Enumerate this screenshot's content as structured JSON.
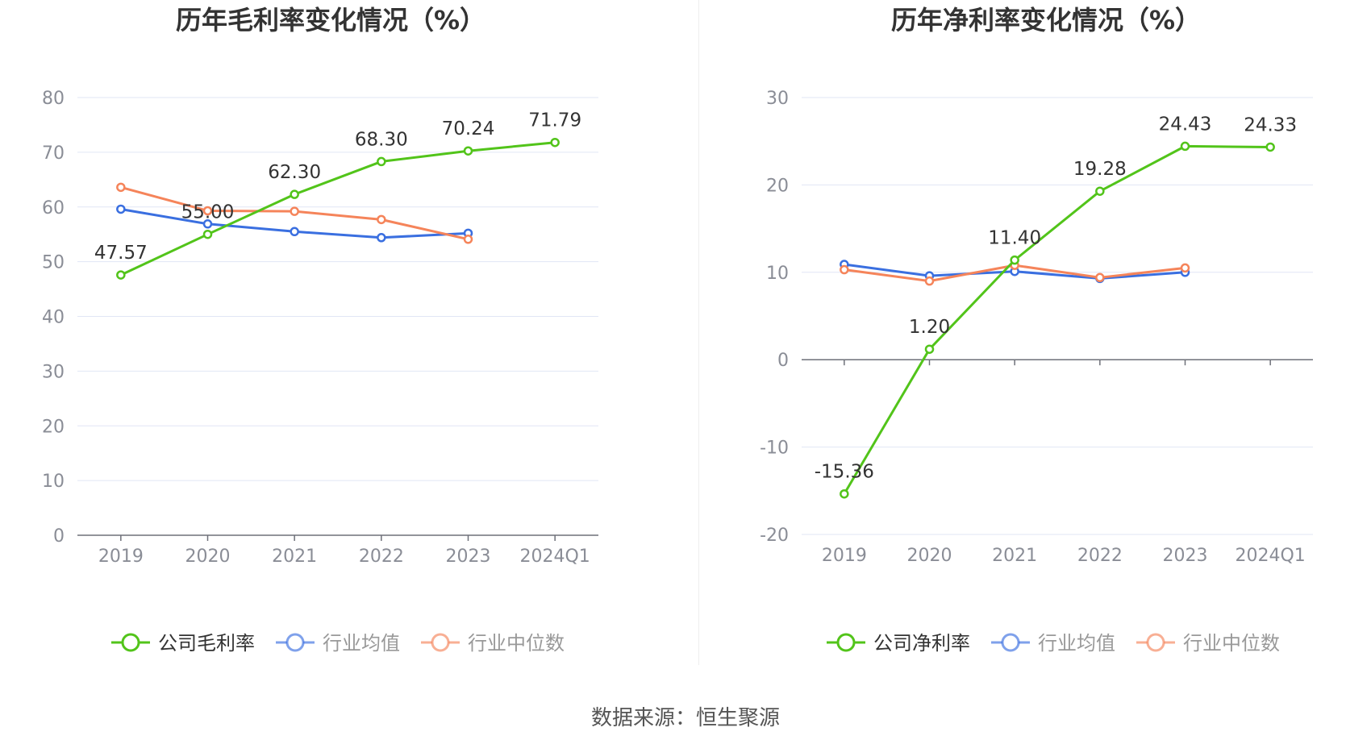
{
  "source_text": "数据来源：恒生聚源",
  "colors": {
    "company": "#52c41a",
    "avg": "#3a6fe0",
    "median": "#f5845a",
    "grid": "#e1e6f5",
    "axis": "#6e7079",
    "tick_text": "#8a8d96",
    "title": "#333333",
    "label": "#333333"
  },
  "chart_data": [
    {
      "type": "line",
      "title": "历年毛利率变化情况（%）",
      "categories": [
        "2019",
        "2020",
        "2021",
        "2022",
        "2023",
        "2024Q1"
      ],
      "ylim": [
        0,
        80
      ],
      "yticks": [
        0,
        10,
        20,
        30,
        40,
        50,
        60,
        70,
        80
      ],
      "grid": true,
      "legend_position": "bottom",
      "series": [
        {
          "name": "公司毛利率",
          "color": "#52c41a",
          "values": [
            47.57,
            55.0,
            62.3,
            68.3,
            70.24,
            71.79
          ],
          "labels": [
            "47.57",
            "55.00",
            "62.30",
            "68.30",
            "70.24",
            "71.79"
          ]
        },
        {
          "name": "行业均值",
          "color": "#3a6fe0",
          "values": [
            59.6,
            56.9,
            55.5,
            54.4,
            55.2,
            null
          ]
        },
        {
          "name": "行业中位数",
          "color": "#f5845a",
          "values": [
            63.6,
            59.3,
            59.2,
            57.7,
            54.1,
            null
          ]
        }
      ]
    },
    {
      "type": "line",
      "title": "历年净利率变化情况（%）",
      "categories": [
        "2019",
        "2020",
        "2021",
        "2022",
        "2023",
        "2024Q1"
      ],
      "ylim": [
        -20,
        30
      ],
      "yticks": [
        -20,
        -10,
        0,
        10,
        20,
        30
      ],
      "grid": true,
      "legend_position": "bottom",
      "series": [
        {
          "name": "公司净利率",
          "color": "#52c41a",
          "values": [
            -15.36,
            1.2,
            11.4,
            19.28,
            24.43,
            24.33
          ],
          "labels": [
            "-15.36",
            "1.20",
            "11.40",
            "19.28",
            "24.43",
            "24.33"
          ]
        },
        {
          "name": "行业均值",
          "color": "#3a6fe0",
          "values": [
            10.9,
            9.6,
            10.1,
            9.3,
            10.0,
            null
          ]
        },
        {
          "name": "行业中位数",
          "color": "#f5845a",
          "values": [
            10.3,
            9.0,
            10.8,
            9.4,
            10.5,
            null
          ]
        }
      ]
    }
  ]
}
